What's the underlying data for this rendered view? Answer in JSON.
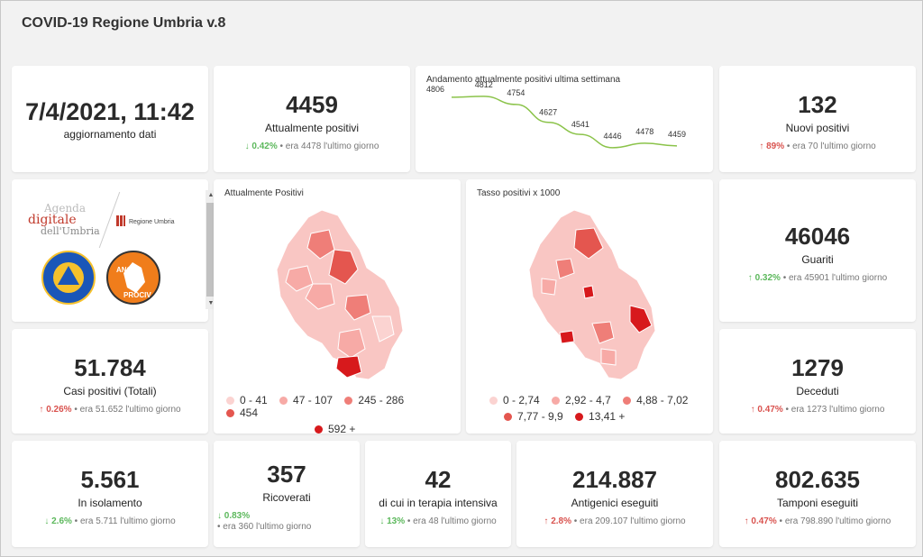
{
  "app": {
    "title": "COVID-19 Regione Umbria v.8"
  },
  "update": {
    "datetime": "7/4/2021, 11:42",
    "label": "aggiornamento dati"
  },
  "kpis": {
    "attualmente_positivi": {
      "value": "4459",
      "label": "Attualmente positivi",
      "pct": "0.42%",
      "prev": "era 4478 l'ultimo giorno",
      "direction": "down"
    },
    "nuovi_positivi": {
      "value": "132",
      "label": "Nuovi positivi",
      "pct": "89%",
      "prev": "era 70 l'ultimo giorno",
      "direction": "up"
    },
    "guariti": {
      "value": "46046",
      "label": "Guariti",
      "pct": "0.32%",
      "prev": "era 45901 l'ultimo giorno",
      "direction": "up"
    },
    "casi_totali": {
      "value": "51.784",
      "label": "Casi positivi (Totali)",
      "pct": "0.26%",
      "prev": "era 51.652 l'ultimo giorno",
      "direction": "up"
    },
    "deceduti": {
      "value": "1279",
      "label": "Deceduti",
      "pct": "0.47%",
      "prev": "era 1273 l'ultimo giorno",
      "direction": "up"
    },
    "isolamento": {
      "value": "5.561",
      "label": "In isolamento",
      "pct": "2.6%",
      "prev": "era 5.711 l'ultimo giorno",
      "direction": "down"
    },
    "ricoverati": {
      "value": "357",
      "label": "Ricoverati",
      "pct": "0.83%",
      "prev": "era 360 l'ultimo giorno",
      "direction": "down"
    },
    "terapia_intensiva": {
      "value": "42",
      "label": "di cui in terapia intensiva",
      "pct": "13%",
      "prev": "era 48 l'ultimo giorno",
      "direction": "down"
    },
    "antigenici": {
      "value": "214.887",
      "label": "Antigenici eseguiti",
      "pct": "2.8%",
      "prev": "era 209.107 l'ultimo giorno",
      "direction": "up"
    },
    "tamponi": {
      "value": "802.635",
      "label": "Tamponi eseguiti",
      "pct": "0.47%",
      "prev": "era 798.890 l'ultimo giorno",
      "direction": "up"
    }
  },
  "logos": {
    "agenda_line1": "Agenda",
    "agenda_line2": "digitale",
    "agenda_line3": "dell'Umbria",
    "regione": "Regione Umbria",
    "protezione_civile": "Protezione Civile",
    "protezione_civile_sub": "Regione Umbria",
    "anci": "ANCI",
    "anci_sub": "UMBRIA",
    "prociv": "PROCIV"
  },
  "maps": {
    "positivi": {
      "title": "Attualmente Positivi",
      "legend": [
        {
          "label": "0 - 41",
          "color": "#fbd3d1"
        },
        {
          "label": "47 - 107",
          "color": "#f7aaa6"
        },
        {
          "label": "245 - 286",
          "color": "#ef7e78"
        },
        {
          "label": "454",
          "color": "#e4564f"
        },
        {
          "label": "592 +",
          "color": "#d7191c"
        }
      ]
    },
    "tasso": {
      "title": "Tasso positivi x 1000",
      "legend": [
        {
          "label": "0 - 2,74",
          "color": "#fbd3d1"
        },
        {
          "label": "2,92 - 4,7",
          "color": "#f7aaa6"
        },
        {
          "label": "4,88 - 7,02",
          "color": "#ef7e78"
        },
        {
          "label": "7,77 - 9,9",
          "color": "#e4564f"
        },
        {
          "label": "13,41 +",
          "color": "#d7191c"
        }
      ]
    }
  },
  "chart_data": {
    "type": "line",
    "title": "Andamento attualmente positivi ultima settimana",
    "values": [
      4806,
      4812,
      4754,
      4627,
      4541,
      4446,
      4478,
      4459
    ],
    "labels": [
      "4806",
      "4812",
      "4754",
      "4627",
      "4541",
      "4446",
      "4478",
      "4459"
    ],
    "color": "#8bc34a",
    "ylim": [
      4400,
      4850
    ]
  }
}
